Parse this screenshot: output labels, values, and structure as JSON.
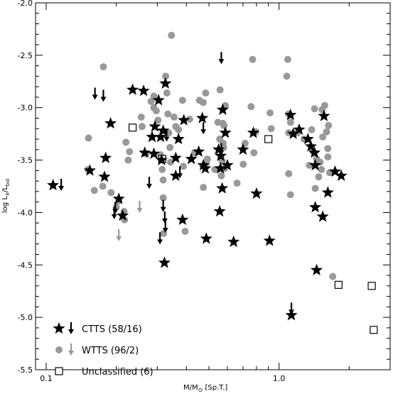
{
  "chart_data": {
    "type": "scatter",
    "title": "",
    "xlabel": "M/M",
    "xlabel_sub": "⊙",
    "xlabel_tail": " [Sp.T.]",
    "ylabel": "log L",
    "ylabel_sub1": "X",
    "ylabel_mid": "/L",
    "ylabel_sub2": "bol",
    "x_scale": "log",
    "xlim": [
      0.09,
      3.0
    ],
    "ylim": [
      -5.5,
      -2.0
    ],
    "x_tick_labels": [
      {
        "value": 0.1,
        "label": "0.1"
      },
      {
        "value": 1.0,
        "label": "1.0"
      }
    ],
    "y_tick_labels": [
      {
        "value": -2.0,
        "label": "-2.0"
      },
      {
        "value": -2.5,
        "label": "-2.5"
      },
      {
        "value": -3.0,
        "label": "-3.0"
      },
      {
        "value": -3.5,
        "label": "-3.5"
      },
      {
        "value": -4.0,
        "label": "-4.0"
      },
      {
        "value": -4.5,
        "label": "-4.5"
      },
      {
        "value": -5.0,
        "label": "-5.0"
      },
      {
        "value": -5.5,
        "label": "-5.5"
      }
    ],
    "legend": {
      "position": "bottom-left",
      "entries": [
        {
          "label": "CTTS (58/16)",
          "marker": "star",
          "color": "#000000",
          "upper_limit": true
        },
        {
          "label": "WTTS (96/2)",
          "marker": "circle",
          "color": "#999999",
          "upper_limit": true
        },
        {
          "label": "Unclassified (6)",
          "marker": "square",
          "color": "#000000",
          "upper_limit": false
        }
      ]
    },
    "series": [
      {
        "name": "CTTS",
        "marker": "star",
        "color": "#000000",
        "points": [
          [
            0.107,
            -3.74
          ],
          [
            0.154,
            -3.6
          ],
          [
            0.18,
            -3.48
          ],
          [
            0.178,
            -3.66
          ],
          [
            0.189,
            -3.15
          ],
          [
            0.205,
            -3.87
          ],
          [
            0.213,
            -4.03
          ],
          [
            0.235,
            -2.83
          ],
          [
            0.262,
            -2.84
          ],
          [
            0.265,
            -3.43
          ],
          [
            0.285,
            -3.28
          ],
          [
            0.29,
            -3.44
          ],
          [
            0.293,
            -3.18
          ],
          [
            0.304,
            -2.93
          ],
          [
            0.31,
            -3.28
          ],
          [
            0.313,
            -3.5
          ],
          [
            0.318,
            -3.22
          ],
          [
            0.325,
            -2.77
          ],
          [
            0.322,
            -4.48
          ],
          [
            0.36,
            -3.65
          ],
          [
            0.37,
            -3.3
          ],
          [
            0.39,
            -3.12
          ],
          [
            0.385,
            -4.07
          ],
          [
            0.42,
            -3.49
          ],
          [
            0.452,
            -3.42
          ],
          [
            0.468,
            -3.1
          ],
          [
            0.473,
            -3.55
          ],
          [
            0.482,
            -3.58
          ],
          [
            0.487,
            -4.25
          ],
          [
            0.55,
            -3.4
          ],
          [
            0.562,
            -3.46
          ],
          [
            0.56,
            -3.58
          ],
          [
            0.556,
            -3.99
          ],
          [
            0.573,
            -3.02
          ],
          [
            0.57,
            -3.77
          ],
          [
            0.588,
            -3.24
          ],
          [
            0.6,
            -3.55
          ],
          [
            0.638,
            -4.28
          ],
          [
            0.775,
            -3.24
          ],
          [
            0.8,
            -3.82
          ],
          [
            0.91,
            -4.27
          ],
          [
            1.12,
            -3.07
          ],
          [
            1.13,
            -4.98
          ],
          [
            1.22,
            -3.21
          ],
          [
            1.33,
            -3.3
          ],
          [
            1.37,
            -3.37
          ],
          [
            1.42,
            -3.43
          ],
          [
            1.43,
            -3.55
          ],
          [
            1.45,
            -4.55
          ],
          [
            1.43,
            -3.95
          ],
          [
            1.54,
            -4.04
          ],
          [
            1.56,
            -3.08
          ],
          [
            1.62,
            -3.81
          ],
          [
            1.74,
            -3.61
          ],
          [
            1.85,
            -3.65
          ],
          [
            1.15,
            -3.25
          ],
          [
            0.36,
            -3.48
          ],
          [
            0.7,
            -3.4
          ]
        ]
      },
      {
        "name": "CTTS",
        "marker": "arrow",
        "color": "#000000",
        "points": [
          [
            0.116,
            -3.74
          ],
          [
            0.162,
            -2.87
          ],
          [
            0.176,
            -2.89
          ],
          [
            0.198,
            -3.96
          ],
          [
            0.196,
            -4.01
          ],
          [
            0.277,
            -3.72
          ],
          [
            0.308,
            -4.25
          ],
          [
            0.318,
            -3.94
          ],
          [
            0.323,
            -4.05
          ],
          [
            0.325,
            -4.14
          ],
          [
            0.329,
            -3.27
          ],
          [
            0.375,
            -3.62
          ],
          [
            0.473,
            -3.2
          ],
          [
            0.565,
            -2.53
          ],
          [
            0.565,
            -3.4
          ],
          [
            1.13,
            -4.92
          ]
        ]
      },
      {
        "name": "WTTS",
        "marker": "circle",
        "color": "#999999",
        "points": [
          [
            0.152,
            -3.29
          ],
          [
            0.151,
            -3.59
          ],
          [
            0.161,
            -3.79
          ],
          [
            0.176,
            -2.61
          ],
          [
            0.175,
            -3.75
          ],
          [
            0.19,
            -3.81
          ],
          [
            0.2,
            -3.95
          ],
          [
            0.205,
            -3.89
          ],
          [
            0.216,
            -3.99
          ],
          [
            0.217,
            -4.07
          ],
          [
            0.22,
            -3.33
          ],
          [
            0.228,
            -3.42
          ],
          [
            0.225,
            -3.5
          ],
          [
            0.256,
            -3.09
          ],
          [
            0.258,
            -3.18
          ],
          [
            0.268,
            -3.44
          ],
          [
            0.282,
            -2.94
          ],
          [
            0.29,
            -2.89
          ],
          [
            0.29,
            -3.0
          ],
          [
            0.297,
            -3.03
          ],
          [
            0.302,
            -3.12
          ],
          [
            0.31,
            -3.45
          ],
          [
            0.315,
            -3.59
          ],
          [
            0.318,
            -3.69
          ],
          [
            0.318,
            -3.86
          ],
          [
            0.319,
            -4.2
          ],
          [
            0.326,
            -2.7
          ],
          [
            0.33,
            -2.86
          ],
          [
            0.333,
            -3.06
          ],
          [
            0.336,
            -3.24
          ],
          [
            0.34,
            -3.38
          ],
          [
            0.342,
            -3.52
          ],
          [
            0.345,
            -2.31
          ],
          [
            0.354,
            -3.09
          ],
          [
            0.36,
            -3.18
          ],
          [
            0.37,
            -3.21
          ],
          [
            0.385,
            -2.93
          ],
          [
            0.388,
            -3.56
          ],
          [
            0.395,
            -4.18
          ],
          [
            0.413,
            -3.11
          ],
          [
            0.434,
            -3.43
          ],
          [
            0.455,
            -2.93
          ],
          [
            0.472,
            -2.95
          ],
          [
            0.473,
            -3.76
          ],
          [
            0.484,
            -2.86
          ],
          [
            0.487,
            -3.53
          ],
          [
            0.492,
            -3.49
          ],
          [
            0.53,
            -3.59
          ],
          [
            0.546,
            -3.14
          ],
          [
            0.556,
            -3.3
          ],
          [
            0.558,
            -2.83
          ],
          [
            0.562,
            -3.48
          ],
          [
            0.565,
            -3.65
          ],
          [
            0.57,
            -3.51
          ],
          [
            0.574,
            -3.15
          ],
          [
            0.575,
            -3.34
          ],
          [
            0.578,
            -3.38
          ],
          [
            0.58,
            -3.17
          ],
          [
            0.585,
            -3.58
          ],
          [
            0.588,
            -2.98
          ],
          [
            0.702,
            -3.54
          ],
          [
            0.715,
            -3.34
          ],
          [
            0.758,
            -2.99
          ],
          [
            0.77,
            -2.54
          ],
          [
            0.78,
            -3.43
          ],
          [
            0.795,
            -3.23
          ],
          [
            0.915,
            -3.05
          ],
          [
            0.925,
            -3.2
          ],
          [
            1.08,
            -2.7
          ],
          [
            1.09,
            -2.54
          ],
          [
            1.1,
            -3.06
          ],
          [
            1.1,
            -3.24
          ],
          [
            1.1,
            -3.63
          ],
          [
            1.12,
            -3.14
          ],
          [
            1.12,
            -3.83
          ],
          [
            1.2,
            -3.24
          ],
          [
            1.28,
            -3.3
          ],
          [
            1.35,
            -3.55
          ],
          [
            1.38,
            -3.21
          ],
          [
            1.4,
            -3.42
          ],
          [
            1.42,
            -3.01
          ],
          [
            1.45,
            -3.49
          ],
          [
            1.43,
            -3.77
          ],
          [
            1.48,
            -3.66
          ],
          [
            1.5,
            -3.52
          ],
          [
            1.53,
            -3.02
          ],
          [
            1.54,
            -3.28
          ],
          [
            1.57,
            -2.98
          ],
          [
            1.6,
            -3.23
          ],
          [
            1.62,
            -3.39
          ],
          [
            1.62,
            -3.47
          ],
          [
            1.65,
            -3.62
          ],
          [
            1.63,
            -3.17
          ],
          [
            1.7,
            -4.61
          ],
          [
            1.52,
            -3.59
          ],
          [
            0.66,
            -3.72
          ]
        ]
      },
      {
        "name": "WTTS",
        "marker": "arrow",
        "color": "#999999",
        "points": [
          [
            0.205,
            -4.22
          ],
          [
            0.252,
            -3.95
          ]
        ]
      },
      {
        "name": "Unclassified",
        "marker": "square",
        "color": "#000000",
        "points": [
          [
            0.235,
            -3.19
          ],
          [
            0.315,
            -3.49
          ],
          [
            0.9,
            -3.3
          ],
          [
            1.8,
            -4.69
          ],
          [
            2.5,
            -4.7
          ],
          [
            2.55,
            -5.12
          ]
        ]
      }
    ]
  }
}
